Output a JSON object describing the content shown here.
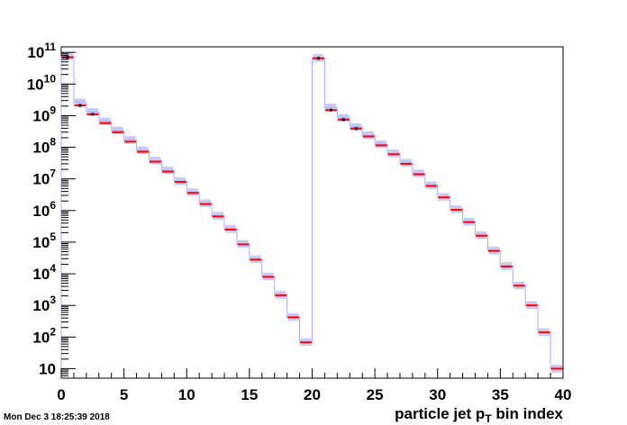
{
  "timestamp": "Mon Dec  3 18:25:39 2018",
  "chart_data": {
    "type": "bar",
    "xlabel": "particle jet p",
    "xlabel_sub": "T",
    "xlabel_suffix": " bin index",
    "x_ticks": [
      "0",
      "5",
      "10",
      "15",
      "20",
      "25",
      "30",
      "35",
      "40"
    ],
    "y_ticks": [
      {
        "base": "10",
        "exp": ""
      },
      {
        "base": "10",
        "exp": "2"
      },
      {
        "base": "10",
        "exp": "3"
      },
      {
        "base": "10",
        "exp": "4"
      },
      {
        "base": "10",
        "exp": "5"
      },
      {
        "base": "10",
        "exp": "6"
      },
      {
        "base": "10",
        "exp": "7"
      },
      {
        "base": "10",
        "exp": "8"
      },
      {
        "base": "10",
        "exp": "9"
      },
      {
        "base": "10",
        "exp": "10"
      },
      {
        "base": "10",
        "exp": "11"
      }
    ],
    "xlim": [
      0,
      40
    ],
    "ylim": [
      5,
      150000000000
    ],
    "log_y": true,
    "bin_width": 1,
    "grid": false,
    "series": [
      {
        "color": "#ff0000",
        "style": "markers",
        "values": [
          70000000000.0,
          2100000000.0,
          1100000000.0,
          580000000.0,
          300000000.0,
          150000000.0,
          72000000.0,
          35000000.0,
          17000000.0,
          8000000.0,
          3600000.0,
          1600000.0,
          650000.0,
          250000.0,
          85000.0,
          28000.0,
          8000.0,
          2100.0,
          420.0,
          68,
          65000000000.0,
          1500000000.0,
          750000000.0,
          390000000.0,
          220000000.0,
          115000000.0,
          60000000.0,
          30000000.0,
          14000000.0,
          6000000.0,
          2600000.0,
          1050000.0,
          430000.0,
          160000.0,
          53000.0,
          17000.0,
          4200.0,
          1000.0,
          140.0,
          10
        ]
      },
      {
        "color": "#aaaaff",
        "style": "step",
        "values": [
          75000000000.0,
          2600000000.0,
          1300000000.0,
          660000000.0,
          340000000.0,
          170000000.0,
          80000000.0,
          38000000.0,
          18500000.0,
          8500000.0,
          3800000.0,
          1700000.0,
          680000.0,
          260000.0,
          88000.0,
          29000.0,
          8200.0,
          2150.0,
          430.0,
          69,
          67000000000.0,
          1800000000.0,
          850000000.0,
          430000000.0,
          240000000.0,
          125000000.0,
          64000000.0,
          32000000.0,
          15000000.0,
          6300000.0,
          2700000.0,
          1100000.0,
          440000.0,
          165000.0,
          54000.0,
          17500.0,
          4300.0,
          1020.0,
          142.0,
          10
        ]
      }
    ]
  }
}
